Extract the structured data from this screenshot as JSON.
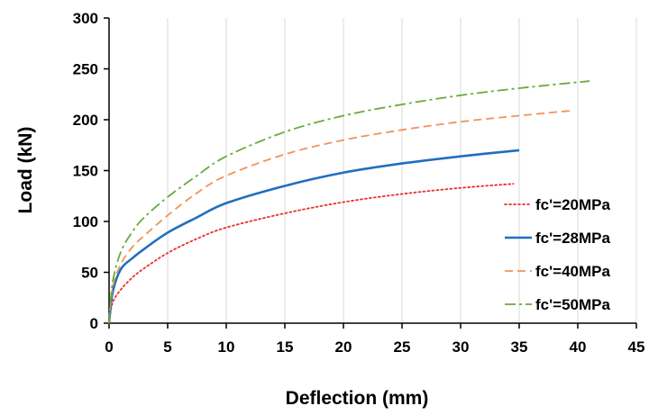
{
  "chart_data": {
    "type": "line",
    "title": "",
    "xlabel": "Deflection (mm)",
    "ylabel": "Load (kN)",
    "xlim": [
      0,
      45
    ],
    "ylim": [
      0,
      300
    ],
    "x_ticks": [
      "0",
      "5",
      "10",
      "15",
      "20",
      "25",
      "30",
      "35",
      "40",
      "45"
    ],
    "y_ticks": [
      "0",
      "50",
      "100",
      "150",
      "200",
      "250",
      "300"
    ],
    "grid": "vertical",
    "legend_position": "right",
    "series": [
      {
        "name": "fc'=20MPa",
        "color": "#e8322e",
        "style": "dotted",
        "x": [
          0,
          0.3,
          1,
          2,
          3,
          5,
          7.5,
          10,
          15,
          20,
          25,
          30,
          34.5
        ],
        "y": [
          0,
          20,
          33,
          45,
          54,
          69,
          83,
          94,
          108,
          119,
          127,
          133,
          137
        ]
      },
      {
        "name": "fc'=28MPa",
        "color": "#1f6fbf",
        "style": "solid",
        "x": [
          0,
          0.3,
          1,
          2,
          3,
          5,
          7.5,
          10,
          15,
          20,
          25,
          30,
          35
        ],
        "y": [
          0,
          30,
          53,
          64,
          73,
          89,
          104,
          118,
          135,
          148,
          157,
          164,
          170
        ]
      },
      {
        "name": "fc'=40MPa",
        "color": "#f0935a",
        "style": "dashed",
        "x": [
          0,
          0.3,
          1,
          2,
          3,
          5,
          7.5,
          10,
          15,
          20,
          25,
          30,
          35,
          39.5
        ],
        "y": [
          0,
          35,
          58,
          75,
          86,
          106,
          128,
          145,
          166,
          180,
          190,
          198,
          204,
          209
        ]
      },
      {
        "name": "fc'=50MPa",
        "color": "#6aaa3a",
        "style": "dashdot",
        "x": [
          0,
          0.3,
          1,
          2,
          3,
          5,
          7.5,
          10,
          15,
          20,
          25,
          30,
          35,
          41
        ],
        "y": [
          0,
          40,
          70,
          90,
          104,
          124,
          145,
          164,
          188,
          204,
          215,
          224,
          231,
          238
        ]
      }
    ]
  }
}
